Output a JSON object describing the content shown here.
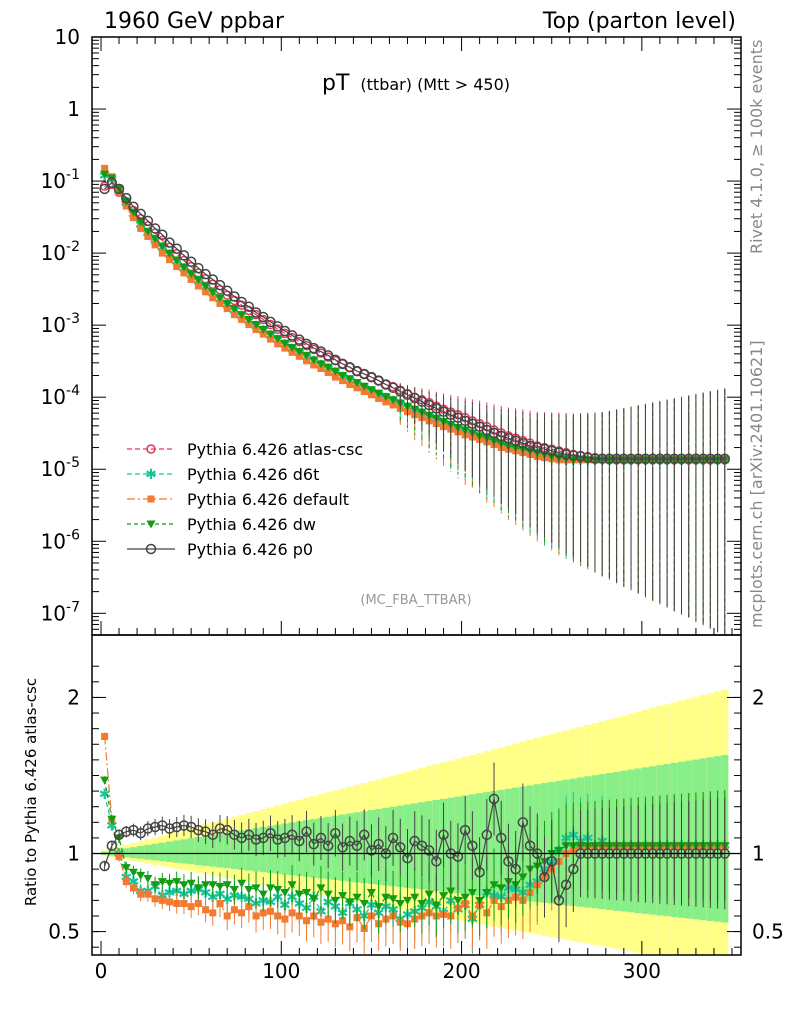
{
  "header": {
    "left": "1960 GeV ppbar",
    "right": "Top (parton level)"
  },
  "side_texts": {
    "rivet": "Rivet 4.1.0, ≥ 100k events",
    "mcplots": "mcplots.cern.ch [arXiv:2401.10621]"
  },
  "plot_title": {
    "main": "pT",
    "sub": "(ttbar) (Mtt > 450)"
  },
  "analysis_id": "(MC_FBA_TTBAR)",
  "ratio_ylabel": "Ratio to Pythia 6.426 atlas-csc",
  "colors": {
    "atlas_csc": "#e8335a",
    "d6t": "#17c59a",
    "default": "#f47a30",
    "dw": "#119c11",
    "p0": "#444444",
    "band_yellow": "#ffff88",
    "band_green": "#88ee88"
  },
  "chart_data": [
    {
      "type": "line",
      "panel": "main",
      "yscale": "log",
      "xlim": [
        -5,
        355
      ],
      "ylim": [
        5e-08,
        10
      ],
      "ytick_labels": [
        "10",
        "1",
        "10-1",
        "10-2",
        "10-3",
        "10-4",
        "10-5",
        "10-6",
        "10-7"
      ],
      "legend_placement": "bottom-left",
      "x": [
        2,
        6,
        10,
        14,
        18,
        22,
        26,
        30,
        34,
        38,
        42,
        46,
        50,
        54,
        58,
        62,
        66,
        70,
        74,
        78,
        82,
        86,
        90,
        94,
        98,
        102,
        106,
        110,
        114,
        118,
        122,
        126,
        130,
        134,
        138,
        142,
        146,
        150,
        154,
        158,
        162,
        166,
        170,
        174,
        178,
        182,
        186,
        190,
        194,
        198,
        202,
        206,
        210,
        214,
        218,
        222,
        226,
        230,
        234,
        238,
        242,
        246,
        250,
        254,
        258,
        262,
        266,
        270,
        274,
        278,
        282,
        286,
        290,
        294,
        298,
        302,
        306,
        310,
        314,
        318,
        322,
        326,
        330,
        334,
        338,
        342,
        346
      ],
      "series": [
        {
          "name": "Pythia 6.426 atlas-csc",
          "key": "atlas_csc",
          "values": [
            0.085,
            0.09,
            0.07,
            0.052,
            0.039,
            0.03,
            0.024,
            0.019,
            0.015,
            0.012,
            0.0098,
            0.0079,
            0.0065,
            0.0053,
            0.0044,
            0.0037,
            0.0031,
            0.0026,
            0.0022,
            0.0019,
            0.0016,
            0.0014,
            0.0012,
            0.00102,
            0.00088,
            0.00077,
            0.00067,
            0.00059,
            0.00052,
            0.00046,
            0.00041,
            0.00036,
            0.00032,
            0.00029,
            0.00026,
            0.00023,
            0.00021,
            0.00019,
            0.00017,
            0.00015,
            0.00014,
            0.000125,
            0.000112,
            0.0001,
            9.2e-05,
            8.4e-05,
            7.5e-05,
            6.8e-05,
            6.2e-05,
            5.7e-05,
            5.2e-05,
            4.7e-05,
            4.3e-05,
            3.9e-05,
            3.5e-05,
            3.2e-05,
            2.9e-05,
            2.7e-05,
            2.5e-05,
            2.3e-05,
            2.1e-05,
            2e-05,
            1.9e-05,
            1.8e-05,
            1.7e-05,
            1.6e-05,
            1.55e-05,
            1.5e-05,
            1.45e-05,
            1.4e-05,
            1.35e-05,
            1.35e-05,
            1.35e-05,
            1.35e-05,
            1.35e-05,
            1.35e-05,
            1.35e-05,
            1.35e-05,
            1.35e-05,
            1.35e-05,
            1.35e-05,
            1.35e-05,
            1.35e-05,
            1.35e-05,
            1.35e-05,
            1.35e-05,
            1.35e-05
          ]
        },
        {
          "name": "Pythia 6.426 d6t",
          "key": "d6t",
          "values": [
            0.12,
            0.105,
            0.075,
            0.05,
            0.035,
            0.025,
            0.019,
            0.015,
            0.012,
            0.0095,
            0.0076,
            0.0061,
            0.005,
            0.0041,
            0.0034,
            0.0028,
            0.0023,
            0.0019,
            0.0016,
            0.00135,
            0.00115,
            0.00098,
            0.00084,
            0.00072,
            0.00062,
            0.00054,
            0.00047,
            0.00041,
            0.00036,
            0.00032,
            0.00028,
            0.00025,
            0.00022,
            0.00019,
            0.00017,
            0.00015,
            0.000135,
            0.00012,
            0.000108,
            9.7e-05,
            8.8e-05,
            8e-05,
            7.2e-05,
            6.5e-05,
            5.9e-05,
            5.4e-05,
            4.9e-05,
            4.4e-05,
            4e-05,
            3.7e-05,
            3.4e-05,
            3.1e-05,
            2.8e-05,
            2.6e-05,
            2.4e-05,
            2.2e-05,
            2e-05,
            1.9e-05,
            1.8e-05,
            1.7e-05,
            1.6e-05,
            1.5e-05,
            1.45e-05,
            1.4e-05,
            1.35e-05,
            1.35e-05,
            1.35e-05,
            1.35e-05,
            1.35e-05,
            1.35e-05,
            1.35e-05,
            1.35e-05,
            1.35e-05,
            1.35e-05,
            1.35e-05,
            1.35e-05,
            1.35e-05,
            1.35e-05,
            1.35e-05,
            1.35e-05,
            1.35e-05,
            1.35e-05,
            1.35e-05,
            1.35e-05,
            1.35e-05,
            1.35e-05,
            1.35e-05
          ]
        },
        {
          "name": "Pythia 6.426 default",
          "key": "default",
          "values": [
            0.15,
            0.115,
            0.072,
            0.045,
            0.031,
            0.022,
            0.017,
            0.013,
            0.01,
            0.0081,
            0.0065,
            0.0053,
            0.0043,
            0.0035,
            0.0029,
            0.0024,
            0.002,
            0.0017,
            0.0014,
            0.0012,
            0.00102,
            0.00087,
            0.00075,
            0.00064,
            0.00055,
            0.00048,
            0.00042,
            0.00037,
            0.00032,
            0.00028,
            0.00025,
            0.00022,
            0.00019,
            0.00017,
            0.00015,
            0.000135,
            0.00012,
            0.000108,
            9.6e-05,
            8.6e-05,
            7.8e-05,
            7e-05,
            6.3e-05,
            5.7e-05,
            5.2e-05,
            4.7e-05,
            4.3e-05,
            3.9e-05,
            3.6e-05,
            3.3e-05,
            3e-05,
            2.8e-05,
            2.6e-05,
            2.4e-05,
            2.2e-05,
            2e-05,
            1.9e-05,
            1.8e-05,
            1.7e-05,
            1.6e-05,
            1.5e-05,
            1.45e-05,
            1.4e-05,
            1.35e-05,
            1.35e-05,
            1.35e-05,
            1.35e-05,
            1.35e-05,
            1.35e-05,
            1.35e-05,
            1.35e-05,
            1.35e-05,
            1.35e-05,
            1.35e-05,
            1.35e-05,
            1.35e-05,
            1.35e-05,
            1.35e-05,
            1.35e-05,
            1.35e-05,
            1.35e-05,
            1.35e-05,
            1.35e-05,
            1.35e-05,
            1.35e-05,
            1.35e-05,
            1.35e-05
          ]
        },
        {
          "name": "Pythia 6.426 dw",
          "key": "dw",
          "values": [
            0.125,
            0.11,
            0.078,
            0.052,
            0.037,
            0.027,
            0.02,
            0.016,
            0.0125,
            0.0099,
            0.008,
            0.0064,
            0.0052,
            0.0043,
            0.0035,
            0.0029,
            0.0024,
            0.002,
            0.0017,
            0.0014,
            0.0012,
            0.00102,
            0.00087,
            0.00075,
            0.00065,
            0.00056,
            0.00049,
            0.00043,
            0.00038,
            0.00033,
            0.00029,
            0.00026,
            0.00023,
            0.0002,
            0.00018,
            0.00016,
            0.000142,
            0.000127,
            0.000114,
            0.000102,
            9.2e-05,
            8.3e-05,
            7.5e-05,
            6.8e-05,
            6.2e-05,
            5.6e-05,
            5.1e-05,
            4.6e-05,
            4.2e-05,
            3.8e-05,
            3.5e-05,
            3.2e-05,
            2.9e-05,
            2.7e-05,
            2.5e-05,
            2.3e-05,
            2.1e-05,
            2e-05,
            1.9e-05,
            1.8e-05,
            1.7e-05,
            1.6e-05,
            1.5e-05,
            1.45e-05,
            1.4e-05,
            1.35e-05,
            1.35e-05,
            1.35e-05,
            1.35e-05,
            1.35e-05,
            1.35e-05,
            1.35e-05,
            1.35e-05,
            1.35e-05,
            1.35e-05,
            1.35e-05,
            1.35e-05,
            1.35e-05,
            1.35e-05,
            1.35e-05,
            1.35e-05,
            1.35e-05,
            1.35e-05,
            1.35e-05,
            1.35e-05,
            1.35e-05,
            1.35e-05
          ]
        },
        {
          "name": "Pythia 6.426 p0",
          "key": "p0",
          "values": [
            0.078,
            0.095,
            0.078,
            0.058,
            0.044,
            0.035,
            0.028,
            0.022,
            0.018,
            0.014,
            0.0115,
            0.0093,
            0.0076,
            0.0062,
            0.0051,
            0.0043,
            0.0036,
            0.003,
            0.0025,
            0.0021,
            0.0018,
            0.0015,
            0.0013,
            0.00111,
            0.00096,
            0.00083,
            0.00072,
            0.00063,
            0.00055,
            0.00048,
            0.00043,
            0.00038,
            0.00033,
            0.00029,
            0.00026,
            0.00023,
            0.00021,
            0.00019,
            0.00017,
            0.00015,
            0.000135,
            0.00012,
            0.000108,
            9.7e-05,
            8.7e-05,
            7.8e-05,
            7e-05,
            6.3e-05,
            5.7e-05,
            5.2e-05,
            4.7e-05,
            4.3e-05,
            3.9e-05,
            3.5e-05,
            3.2e-05,
            2.9e-05,
            2.7e-05,
            2.5e-05,
            2.3e-05,
            2.1e-05,
            2e-05,
            1.9e-05,
            1.8e-05,
            1.7e-05,
            1.6e-05,
            1.55e-05,
            1.5e-05,
            1.45e-05,
            1.4e-05,
            1.4e-05,
            1.4e-05,
            1.4e-05,
            1.4e-05,
            1.4e-05,
            1.4e-05,
            1.4e-05,
            1.4e-05,
            1.4e-05,
            1.4e-05,
            1.4e-05,
            1.4e-05,
            1.4e-05,
            1.4e-05,
            1.4e-05,
            1.4e-05,
            1.4e-05,
            1.4e-05
          ]
        }
      ]
    },
    {
      "type": "line",
      "panel": "ratio",
      "xlim": [
        -5,
        355
      ],
      "ylim": [
        0.35,
        2.4
      ],
      "ytick_labels": [
        "0.5",
        "1",
        "2"
      ],
      "xtick_labels": [
        "0",
        "100",
        "200",
        "300"
      ],
      "reference_line": 1,
      "series": [
        {
          "name": "Pythia 6.426 d6t",
          "key": "d6t",
          "values": [
            1.38,
            1.18,
            1.0,
            0.85,
            0.82,
            0.76,
            0.76,
            0.79,
            0.73,
            0.75,
            0.76,
            0.74,
            0.76,
            0.77,
            0.75,
            0.72,
            0.74,
            0.71,
            0.73,
            0.72,
            0.71,
            0.68,
            0.7,
            0.69,
            0.72,
            0.67,
            0.72,
            0.68,
            0.65,
            0.72,
            0.63,
            0.69,
            0.66,
            0.62,
            0.68,
            0.64,
            0.6,
            0.67,
            0.62,
            0.66,
            0.64,
            0.58,
            0.61,
            0.63,
            0.65,
            0.69,
            0.66,
            0.62,
            0.7,
            0.64,
            0.67,
            0.58,
            0.67,
            0.75,
            0.73,
            0.72,
            0.78,
            0.77,
            0.75,
            0.8,
            0.82,
            0.9,
            0.95,
            1.02,
            1.1,
            1.12,
            1.08,
            1.1,
            1.05,
            1.08,
            1.05,
            1.05,
            1.05,
            1.05,
            1.05,
            1.05,
            1.05,
            1.05,
            1.05,
            1.05,
            1.05,
            1.05,
            1.05,
            1.05,
            1.05,
            1.05,
            1.05
          ]
        },
        {
          "name": "Pythia 6.426 default",
          "key": "default",
          "values": [
            1.75,
            1.22,
            0.98,
            0.82,
            0.78,
            0.74,
            0.74,
            0.71,
            0.7,
            0.69,
            0.68,
            0.68,
            0.66,
            0.68,
            0.64,
            0.62,
            0.68,
            0.6,
            0.64,
            0.62,
            0.66,
            0.6,
            0.62,
            0.63,
            0.6,
            0.58,
            0.62,
            0.6,
            0.57,
            0.6,
            0.56,
            0.58,
            0.55,
            0.57,
            0.53,
            0.59,
            0.52,
            0.6,
            0.55,
            0.58,
            0.6,
            0.56,
            0.55,
            0.58,
            0.6,
            0.62,
            0.6,
            0.61,
            0.6,
            0.65,
            0.68,
            0.6,
            0.67,
            0.62,
            0.7,
            0.66,
            0.7,
            0.72,
            0.7,
            0.75,
            0.8,
            0.85,
            0.9,
            0.95,
            1.0,
            1.02,
            1.05,
            1.05,
            1.05,
            1.05,
            1.05,
            1.05,
            1.05,
            1.05,
            1.05,
            1.05,
            1.05,
            1.05,
            1.05,
            1.05,
            1.05,
            1.05,
            1.05,
            1.05,
            1.05,
            1.05,
            1.05
          ]
        },
        {
          "name": "Pythia 6.426 dw",
          "key": "dw",
          "values": [
            1.47,
            1.22,
            1.1,
            0.91,
            0.88,
            0.86,
            0.84,
            0.8,
            0.82,
            0.81,
            0.82,
            0.8,
            0.81,
            0.78,
            0.8,
            0.8,
            0.79,
            0.8,
            0.77,
            0.81,
            0.77,
            0.78,
            0.74,
            0.78,
            0.77,
            0.75,
            0.8,
            0.74,
            0.75,
            0.71,
            0.78,
            0.74,
            0.7,
            0.73,
            0.69,
            0.72,
            0.68,
            0.75,
            0.66,
            0.72,
            0.71,
            0.68,
            0.7,
            0.72,
            0.68,
            0.74,
            0.67,
            0.73,
            0.76,
            0.7,
            0.72,
            0.75,
            0.7,
            0.75,
            0.8,
            0.78,
            0.82,
            0.8,
            0.85,
            0.9,
            0.92,
            0.95,
            1.0,
            1.02,
            1.05,
            1.05,
            1.05,
            1.05,
            1.05,
            1.05,
            1.05,
            1.05,
            1.05,
            1.05,
            1.05,
            1.05,
            1.05,
            1.05,
            1.05,
            1.05,
            1.05,
            1.05,
            1.05,
            1.05,
            1.05,
            1.05,
            1.05
          ]
        },
        {
          "name": "Pythia 6.426 p0",
          "key": "p0",
          "values": [
            0.92,
            1.05,
            1.12,
            1.14,
            1.15,
            1.13,
            1.16,
            1.17,
            1.18,
            1.16,
            1.17,
            1.18,
            1.17,
            1.15,
            1.14,
            1.12,
            1.16,
            1.15,
            1.12,
            1.1,
            1.12,
            1.09,
            1.1,
            1.13,
            1.09,
            1.1,
            1.12,
            1.08,
            1.14,
            1.06,
            1.1,
            1.05,
            1.13,
            1.04,
            1.08,
            1.05,
            1.12,
            1.02,
            1.06,
            1.0,
            1.1,
            1.04,
            0.97,
            1.08,
            1.05,
            1.02,
            0.95,
            1.12,
            1.0,
            0.98,
            1.15,
            1.05,
            0.88,
            1.12,
            1.35,
            1.1,
            0.95,
            0.9,
            1.2,
            1.05,
            1.0,
            0.85,
            0.95,
            0.7,
            0.8,
            0.9,
            1.0,
            1.0,
            1.0,
            1.0,
            1.0,
            1.0,
            1.0,
            1.0,
            1.0,
            1.0,
            1.0,
            1.0,
            1.0,
            1.0,
            1.0,
            1.0,
            1.0,
            1.0,
            1.0,
            1.0,
            1.0
          ]
        }
      ]
    }
  ]
}
